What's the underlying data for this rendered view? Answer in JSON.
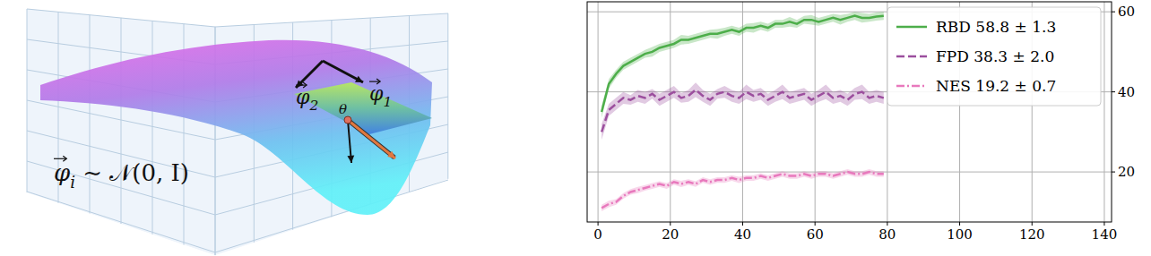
{
  "chart_data": {
    "type": "line",
    "x": [
      1,
      3,
      5,
      7,
      9,
      11,
      13,
      15,
      17,
      19,
      21,
      23,
      25,
      27,
      29,
      31,
      33,
      35,
      37,
      39,
      41,
      43,
      45,
      47,
      49,
      51,
      53,
      55,
      57,
      59,
      61,
      63,
      65,
      67,
      69,
      71,
      73,
      75,
      77,
      79
    ],
    "series": [
      {
        "name": "RBD 58.8 ± 1.3",
        "color": "#4dae4a",
        "line_style": "solid",
        "values": [
          35,
          42,
          44.5,
          46.5,
          47.5,
          48.5,
          49.5,
          50,
          51,
          51.5,
          52,
          53,
          53,
          53.5,
          54,
          54.5,
          54.5,
          55,
          55.5,
          55,
          56,
          56,
          56.5,
          56,
          57,
          57,
          57.5,
          57,
          58,
          58,
          57.5,
          58,
          58.5,
          58,
          58.5,
          59,
          58.5,
          58.5,
          58.8,
          59
        ],
        "errors": [
          1.5,
          1.2,
          1,
          1,
          1,
          1,
          1,
          1.2,
          1,
          1,
          1,
          1.2,
          1,
          1,
          1,
          1,
          1.2,
          1,
          1,
          1,
          1,
          1.2,
          1,
          1,
          1,
          1,
          1.2,
          1,
          1,
          1.2,
          1,
          1,
          1,
          1.2,
          1,
          1,
          1.2,
          1,
          1,
          1
        ]
      },
      {
        "name": "FPD 38.3 ± 2.0",
        "color": "#9c4f9e",
        "line_style": "dashed",
        "values": [
          30,
          35.5,
          37,
          38.5,
          38,
          39,
          38.5,
          39.5,
          38,
          39,
          40,
          38.5,
          39,
          40.5,
          39,
          38,
          39.5,
          40,
          39,
          38.5,
          40,
          39,
          39.5,
          38,
          39,
          40,
          38.5,
          39,
          39.5,
          38,
          39,
          40,
          38.5,
          39,
          38,
          39.5,
          40,
          38.5,
          39,
          38.5
        ],
        "errors": [
          2,
          1.5,
          1.5,
          1.5,
          1.2,
          1.5,
          1.5,
          1.2,
          1.5,
          1.5,
          1.5,
          1.2,
          1.5,
          1.8,
          1.5,
          1.5,
          1.2,
          1.5,
          1.5,
          1.5,
          1.8,
          1.5,
          1.5,
          1.5,
          1.5,
          1.8,
          1.5,
          1.5,
          1.5,
          1.5,
          1.5,
          1.8,
          1.5,
          1.5,
          1.5,
          1.5,
          1.8,
          1.5,
          1.5,
          1.5
        ]
      },
      {
        "name": "NES 19.2 ± 0.7",
        "color": "#e879bd",
        "line_style": "dashdot",
        "values": [
          11,
          12,
          12.5,
          14,
          15,
          15.5,
          16,
          16.5,
          17,
          16.5,
          17.5,
          17,
          17.5,
          17,
          18,
          17.5,
          18,
          18,
          18.5,
          18,
          18.5,
          18.5,
          19,
          18.5,
          19,
          19.5,
          19,
          19,
          19.5,
          19,
          19.5,
          19.5,
          19,
          19.5,
          20,
          19.5,
          19.5,
          20,
          19.5,
          19.5
        ],
        "errors": [
          0.8,
          0.8,
          0.7,
          0.7,
          0.7,
          0.8,
          0.7,
          0.7,
          0.7,
          0.7,
          0.7,
          0.8,
          0.7,
          0.7,
          0.7,
          0.7,
          0.7,
          0.7,
          0.7,
          0.8,
          0.7,
          0.7,
          0.7,
          0.7,
          0.7,
          0.7,
          0.7,
          0.7,
          0.7,
          0.7,
          0.7,
          0.7,
          0.7,
          0.7,
          0.7,
          0.7,
          0.7,
          0.7,
          0.7,
          0.7
        ]
      }
    ],
    "xlim": [
      -3,
      142
    ],
    "xticks": [
      0,
      20,
      40,
      60,
      80,
      100,
      120,
      140
    ],
    "ylim": [
      7.5,
      62.5
    ],
    "yticks": [
      20,
      40,
      60
    ],
    "grid": true,
    "legend": "upper right"
  },
  "illustration": {
    "labels": [
      {
        "text": "φ",
        "sub": "2"
      },
      {
        "text": "φ",
        "sub": "1"
      },
      {
        "text": "θ"
      }
    ],
    "formula": {
      "text": "φ",
      "sub": "i",
      "rest": " ∼ 𝒩(0, I)"
    }
  }
}
